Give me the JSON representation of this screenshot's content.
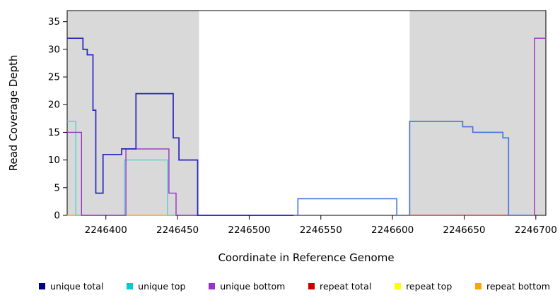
{
  "chart_data": {
    "type": "line",
    "step": true,
    "title": "",
    "xlabel": "Coordinate in Reference Genome",
    "ylabel": "Read Coverage Depth",
    "xlim": [
      2246373,
      2246707
    ],
    "ylim": [
      0,
      37
    ],
    "xticks": [
      2246400,
      2246450,
      2246500,
      2246550,
      2246600,
      2246650,
      2246700
    ],
    "yticks": [
      0,
      5,
      10,
      15,
      20,
      25,
      30,
      35
    ],
    "grid": false,
    "shaded_regions": [
      {
        "x0": 2246373,
        "x1": 2246465,
        "color": "#d9d9d9"
      },
      {
        "x0": 2246612,
        "x1": 2246707,
        "color": "#d9d9d9"
      }
    ],
    "series": [
      {
        "name": "repeat bottom",
        "color": "#FFA500",
        "width": 1.4,
        "segments": [
          [
            [
              2246373,
              0
            ],
            [
              2246464,
              0
            ]
          ]
        ]
      },
      {
        "name": "repeat total",
        "color": "#CC1111",
        "width": 1.2,
        "segments": [
          [
            [
              2246612,
              0
            ],
            [
              2246699,
              0
            ]
          ]
        ]
      },
      {
        "name": "unique top",
        "color": "#48D1CC",
        "width": 1.3,
        "segments": [
          [
            [
              2246373,
              17
            ],
            [
              2246379,
              17
            ],
            [
              2246379,
              0
            ],
            [
              2246413,
              0
            ],
            [
              2246413,
              10
            ],
            [
              2246443,
              10
            ],
            [
              2246443,
              0
            ],
            [
              2246464,
              0
            ]
          ]
        ]
      },
      {
        "name": "unique bottom",
        "color": "#9932CC",
        "width": 1.4,
        "segments": [
          [
            [
              2246373,
              15
            ],
            [
              2246383,
              15
            ],
            [
              2246383,
              0
            ],
            [
              2246414,
              0
            ],
            [
              2246414,
              12
            ],
            [
              2246444,
              12
            ],
            [
              2246444,
              4
            ],
            [
              2246449,
              4
            ],
            [
              2246449,
              0
            ],
            [
              2246531,
              0
            ]
          ],
          [
            [
              2246699,
              0
            ],
            [
              2246699,
              32
            ],
            [
              2246707,
              32
            ]
          ]
        ]
      },
      {
        "name": "unique total",
        "color": "#2626BD",
        "width": 1.7,
        "segments": [
          [
            [
              2246373,
              32
            ],
            [
              2246384,
              32
            ],
            [
              2246384,
              30
            ],
            [
              2246387,
              30
            ],
            [
              2246387,
              29
            ],
            [
              2246391,
              29
            ],
            [
              2246391,
              19
            ],
            [
              2246393,
              19
            ],
            [
              2246393,
              4
            ],
            [
              2246398,
              4
            ],
            [
              2246398,
              11
            ],
            [
              2246411,
              11
            ],
            [
              2246411,
              12
            ],
            [
              2246421,
              12
            ],
            [
              2246421,
              22
            ],
            [
              2246447,
              22
            ],
            [
              2246447,
              14
            ],
            [
              2246451,
              14
            ],
            [
              2246451,
              10
            ],
            [
              2246464,
              10
            ],
            [
              2246464,
              0
            ],
            [
              2246531,
              0
            ]
          ]
        ]
      },
      {
        "name": "unique total",
        "color": "#3F72E0",
        "width": 1.6,
        "segments": [
          [
            [
              2246534,
              0
            ],
            [
              2246534,
              3
            ],
            [
              2246603,
              3
            ],
            [
              2246603,
              0
            ]
          ],
          [
            [
              2246612,
              0
            ],
            [
              2246612,
              17
            ],
            [
              2246649,
              17
            ],
            [
              2246649,
              16
            ],
            [
              2246656,
              16
            ],
            [
              2246656,
              15
            ],
            [
              2246677,
              15
            ],
            [
              2246677,
              14
            ],
            [
              2246681,
              14
            ],
            [
              2246681,
              0
            ],
            [
              2246697,
              0
            ]
          ]
        ]
      }
    ],
    "legend": [
      {
        "label": "unique total",
        "color": "#00008B"
      },
      {
        "label": "unique top",
        "color": "#00CED1"
      },
      {
        "label": "unique bottom",
        "color": "#9932CC"
      },
      {
        "label": "repeat total",
        "color": "#CD0000"
      },
      {
        "label": "repeat top",
        "color": "#FFFF00"
      },
      {
        "label": "repeat bottom",
        "color": "#FFA500"
      }
    ],
    "legend_position": "bottom"
  }
}
